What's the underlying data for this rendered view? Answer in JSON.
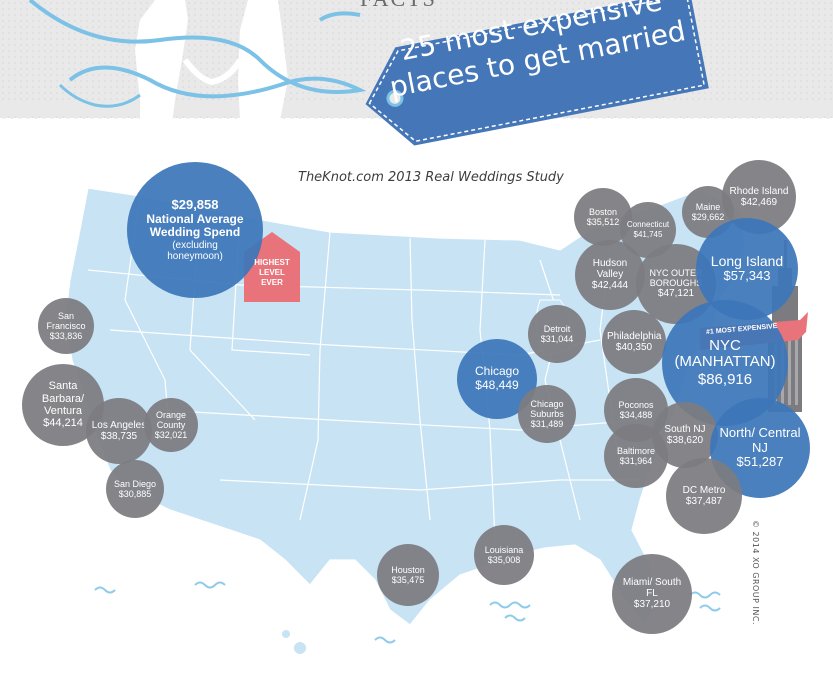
{
  "header": {
    "title_line1": "25 most expensive",
    "title_line2": "places to get married",
    "partial_top_text": "FACTS"
  },
  "subtitle": "TheKnot.com 2013 Real Weddings Study",
  "national": {
    "amount": "$29,858",
    "line1": "National Average",
    "line2": "Wedding Spend",
    "note": "(excluding honeymoon)"
  },
  "highest_badge": {
    "line1": "HIGHEST",
    "line2": "LEVEL",
    "line3": "EVER"
  },
  "most_expensive_ribbon": "#1 MOST EXPENSIVE",
  "copyright": "© 2014 XO GROUP INC.",
  "colors": {
    "blue": "#3c76b9",
    "grey": "#7c7c80",
    "map": "#c7e3f4",
    "badge": "#e8737a",
    "tag": "#4577b8"
  },
  "cities": [
    {
      "name": "San Francisco",
      "amount": "$33,836",
      "color": "grey"
    },
    {
      "name": "Santa Barbara/ Ventura",
      "amount": "$44,214",
      "color": "grey"
    },
    {
      "name": "Los Angeles",
      "amount": "$38,735",
      "color": "grey"
    },
    {
      "name": "Orange County",
      "amount": "$32,021",
      "color": "grey"
    },
    {
      "name": "San Diego",
      "amount": "$30,885",
      "color": "grey"
    },
    {
      "name": "Houston",
      "amount": "$35,475",
      "color": "grey"
    },
    {
      "name": "Louisiana",
      "amount": "$35,008",
      "color": "grey"
    },
    {
      "name": "Chicago",
      "amount": "$48,449",
      "color": "blue"
    },
    {
      "name": "Chicago Suburbs",
      "amount": "$31,489",
      "color": "grey"
    },
    {
      "name": "Detroit",
      "amount": "$31,044",
      "color": "grey"
    },
    {
      "name": "Boston",
      "amount": "$35,512",
      "color": "grey"
    },
    {
      "name": "Connecticut",
      "amount": "$41,745",
      "color": "grey"
    },
    {
      "name": "Hudson Valley",
      "amount": "$42,444",
      "color": "grey"
    },
    {
      "name": "NYC OUTER BOROUGHS",
      "amount": "$47,121",
      "color": "grey"
    },
    {
      "name": "Maine",
      "amount": "$29,662",
      "color": "grey"
    },
    {
      "name": "Rhode Island",
      "amount": "$42,469",
      "color": "grey"
    },
    {
      "name": "Long Island",
      "amount": "$57,343",
      "color": "blue"
    },
    {
      "name": "Philadelphia",
      "amount": "$40,350",
      "color": "grey"
    },
    {
      "name": "NYC (MANHATTAN)",
      "amount": "$86,916",
      "color": "blue"
    },
    {
      "name": "Poconos",
      "amount": "$34,488",
      "color": "grey"
    },
    {
      "name": "South NJ",
      "amount": "$38,620",
      "color": "grey"
    },
    {
      "name": "Baltimore",
      "amount": "$31,964",
      "color": "grey"
    },
    {
      "name": "North/ Central NJ",
      "amount": "$51,287",
      "color": "blue"
    },
    {
      "name": "DC Metro",
      "amount": "$37,487",
      "color": "grey"
    },
    {
      "name": "Miami/ South FL",
      "amount": "$37,210",
      "color": "grey"
    }
  ]
}
